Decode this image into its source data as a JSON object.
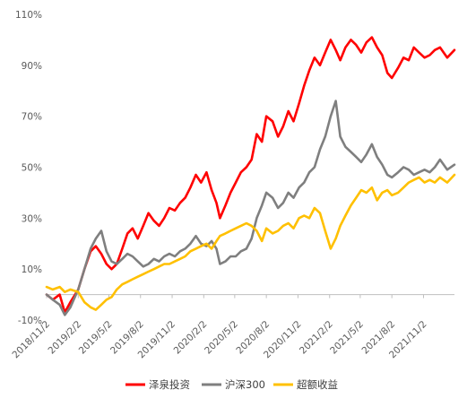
{
  "chart_data": {
    "type": "line",
    "title": "",
    "xlabel": "",
    "ylabel": "",
    "ylim": [
      -10,
      110
    ],
    "y_ticks": [
      "-10%",
      "10%",
      "30%",
      "50%",
      "70%",
      "90%",
      "110%"
    ],
    "y_tick_values": [
      -10,
      10,
      30,
      50,
      70,
      90,
      110
    ],
    "x_ticks": [
      "2018/11/2",
      "2019/2/2",
      "2019/5/2",
      "2019/8/2",
      "2019/11/2",
      "2020/2/2",
      "2020/5/2",
      "2020/8/2",
      "2020/11/2",
      "2021/2/2",
      "2021/5/2",
      "2021/8/2",
      "2021/11/2"
    ],
    "x_range": [
      "2018/11/2",
      "2022/1/31"
    ],
    "legend_position": "bottom",
    "gridlines": false,
    "series": [
      {
        "name": "泽泉投资",
        "color": "#ff0000",
        "points": [
          [
            "2018/11/2",
            0
          ],
          [
            "2018/11/20",
            -2
          ],
          [
            "2018/12/10",
            0
          ],
          [
            "2018/12/25",
            -7
          ],
          [
            "2019/1/10",
            -3
          ],
          [
            "2019/2/2",
            2
          ],
          [
            "2019/2/20",
            10
          ],
          [
            "2019/3/10",
            17
          ],
          [
            "2019/3/25",
            19
          ],
          [
            "2019/4/10",
            16
          ],
          [
            "2019/4/25",
            12
          ],
          [
            "2019/5/10",
            10
          ],
          [
            "2019/5/25",
            12
          ],
          [
            "2019/6/10",
            18
          ],
          [
            "2019/6/25",
            24
          ],
          [
            "2019/7/10",
            26
          ],
          [
            "2019/7/25",
            22
          ],
          [
            "2019/8/10",
            27
          ],
          [
            "2019/8/25",
            32
          ],
          [
            "2019/9/10",
            29
          ],
          [
            "2019/9/25",
            27
          ],
          [
            "2019/10/10",
            30
          ],
          [
            "2019/10/25",
            34
          ],
          [
            "2019/11/10",
            33
          ],
          [
            "2019/11/25",
            36
          ],
          [
            "2019/12/10",
            38
          ],
          [
            "2019/12/25",
            42
          ],
          [
            "2020/1/10",
            47
          ],
          [
            "2020/1/25",
            44
          ],
          [
            "2020/2/10",
            48
          ],
          [
            "2020/2/25",
            41
          ],
          [
            "2020/3/10",
            36
          ],
          [
            "2020/3/20",
            30
          ],
          [
            "2020/4/5",
            35
          ],
          [
            "2020/4/20",
            40
          ],
          [
            "2020/5/5",
            44
          ],
          [
            "2020/5/20",
            48
          ],
          [
            "2020/6/5",
            50
          ],
          [
            "2020/6/20",
            53
          ],
          [
            "2020/7/5",
            63
          ],
          [
            "2020/7/20",
            60
          ],
          [
            "2020/8/2",
            70
          ],
          [
            "2020/8/20",
            68
          ],
          [
            "2020/9/5",
            62
          ],
          [
            "2020/9/20",
            66
          ],
          [
            "2020/10/5",
            72
          ],
          [
            "2020/10/20",
            68
          ],
          [
            "2020/11/5",
            75
          ],
          [
            "2020/11/20",
            82
          ],
          [
            "2020/12/5",
            88
          ],
          [
            "2020/12/20",
            93
          ],
          [
            "2021/1/5",
            90
          ],
          [
            "2021/1/20",
            95
          ],
          [
            "2021/2/5",
            100
          ],
          [
            "2021/2/20",
            96
          ],
          [
            "2021/3/5",
            92
          ],
          [
            "2021/3/20",
            97
          ],
          [
            "2021/4/5",
            100
          ],
          [
            "2021/4/20",
            98
          ],
          [
            "2021/5/5",
            95
          ],
          [
            "2021/5/20",
            99
          ],
          [
            "2021/6/5",
            101
          ],
          [
            "2021/6/20",
            97
          ],
          [
            "2021/7/5",
            94
          ],
          [
            "2021/7/20",
            87
          ],
          [
            "2021/8/2",
            85
          ],
          [
            "2021/8/20",
            89
          ],
          [
            "2021/9/5",
            93
          ],
          [
            "2021/9/20",
            92
          ],
          [
            "2021/10/5",
            97
          ],
          [
            "2021/10/20",
            95
          ],
          [
            "2021/11/5",
            93
          ],
          [
            "2021/11/20",
            94
          ],
          [
            "2021/12/5",
            96
          ],
          [
            "2021/12/20",
            97
          ],
          [
            "2022/1/10",
            93
          ],
          [
            "2022/1/31",
            96
          ]
        ]
      },
      {
        "name": "沪深300",
        "color": "#7f7f7f",
        "points": [
          [
            "2018/11/2",
            0
          ],
          [
            "2018/11/20",
            -2
          ],
          [
            "2018/12/10",
            -4
          ],
          [
            "2018/12/25",
            -8
          ],
          [
            "2019/1/10",
            -5
          ],
          [
            "2019/2/2",
            2
          ],
          [
            "2019/2/20",
            10
          ],
          [
            "2019/3/10",
            18
          ],
          [
            "2019/3/25",
            22
          ],
          [
            "2019/4/10",
            25
          ],
          [
            "2019/4/25",
            17
          ],
          [
            "2019/5/10",
            13
          ],
          [
            "2019/5/25",
            12
          ],
          [
            "2019/6/10",
            14
          ],
          [
            "2019/6/25",
            16
          ],
          [
            "2019/7/10",
            15
          ],
          [
            "2019/7/25",
            13
          ],
          [
            "2019/8/10",
            11
          ],
          [
            "2019/8/25",
            12
          ],
          [
            "2019/9/10",
            14
          ],
          [
            "2019/9/25",
            13
          ],
          [
            "2019/10/10",
            15
          ],
          [
            "2019/10/25",
            16
          ],
          [
            "2019/11/10",
            15
          ],
          [
            "2019/11/25",
            17
          ],
          [
            "2019/12/10",
            18
          ],
          [
            "2019/12/25",
            20
          ],
          [
            "2020/1/10",
            23
          ],
          [
            "2020/1/25",
            20
          ],
          [
            "2020/2/10",
            19
          ],
          [
            "2020/2/25",
            21
          ],
          [
            "2020/3/10",
            18
          ],
          [
            "2020/3/20",
            12
          ],
          [
            "2020/4/5",
            13
          ],
          [
            "2020/4/20",
            15
          ],
          [
            "2020/5/5",
            15
          ],
          [
            "2020/5/20",
            17
          ],
          [
            "2020/6/5",
            18
          ],
          [
            "2020/6/20",
            22
          ],
          [
            "2020/7/5",
            30
          ],
          [
            "2020/7/20",
            35
          ],
          [
            "2020/8/2",
            40
          ],
          [
            "2020/8/20",
            38
          ],
          [
            "2020/9/5",
            34
          ],
          [
            "2020/9/20",
            36
          ],
          [
            "2020/10/5",
            40
          ],
          [
            "2020/10/20",
            38
          ],
          [
            "2020/11/5",
            42
          ],
          [
            "2020/11/20",
            44
          ],
          [
            "2020/12/5",
            48
          ],
          [
            "2020/12/20",
            50
          ],
          [
            "2021/1/5",
            57
          ],
          [
            "2021/1/20",
            62
          ],
          [
            "2021/2/5",
            70
          ],
          [
            "2021/2/20",
            76
          ],
          [
            "2021/3/5",
            62
          ],
          [
            "2021/3/20",
            58
          ],
          [
            "2021/4/5",
            56
          ],
          [
            "2021/4/20",
            54
          ],
          [
            "2021/5/5",
            52
          ],
          [
            "2021/5/20",
            55
          ],
          [
            "2021/6/5",
            59
          ],
          [
            "2021/6/20",
            54
          ],
          [
            "2021/7/5",
            51
          ],
          [
            "2021/7/20",
            47
          ],
          [
            "2021/8/2",
            46
          ],
          [
            "2021/8/20",
            48
          ],
          [
            "2021/9/5",
            50
          ],
          [
            "2021/9/20",
            49
          ],
          [
            "2021/10/5",
            47
          ],
          [
            "2021/10/20",
            48
          ],
          [
            "2021/11/5",
            49
          ],
          [
            "2021/11/20",
            48
          ],
          [
            "2021/12/5",
            50
          ],
          [
            "2021/12/20",
            53
          ],
          [
            "2022/1/10",
            49
          ],
          [
            "2022/1/31",
            51
          ]
        ]
      },
      {
        "name": "超额收益",
        "color": "#ffc000",
        "points": [
          [
            "2018/11/2",
            3
          ],
          [
            "2018/11/20",
            2
          ],
          [
            "2018/12/10",
            3
          ],
          [
            "2018/12/25",
            1
          ],
          [
            "2019/1/10",
            2
          ],
          [
            "2019/2/2",
            1
          ],
          [
            "2019/2/20",
            -3
          ],
          [
            "2019/3/10",
            -5
          ],
          [
            "2019/3/25",
            -6
          ],
          [
            "2019/4/10",
            -4
          ],
          [
            "2019/4/25",
            -2
          ],
          [
            "2019/5/10",
            -1
          ],
          [
            "2019/5/25",
            2
          ],
          [
            "2019/6/10",
            4
          ],
          [
            "2019/6/25",
            5
          ],
          [
            "2019/7/10",
            6
          ],
          [
            "2019/7/25",
            7
          ],
          [
            "2019/8/10",
            8
          ],
          [
            "2019/8/25",
            9
          ],
          [
            "2019/9/10",
            10
          ],
          [
            "2019/9/25",
            11
          ],
          [
            "2019/10/10",
            12
          ],
          [
            "2019/10/25",
            12
          ],
          [
            "2019/11/10",
            13
          ],
          [
            "2019/11/25",
            14
          ],
          [
            "2019/12/10",
            15
          ],
          [
            "2019/12/25",
            17
          ],
          [
            "2020/1/10",
            18
          ],
          [
            "2020/1/25",
            19
          ],
          [
            "2020/2/10",
            20
          ],
          [
            "2020/2/25",
            18
          ],
          [
            "2020/3/10",
            21
          ],
          [
            "2020/3/20",
            23
          ],
          [
            "2020/4/5",
            24
          ],
          [
            "2020/4/20",
            25
          ],
          [
            "2020/5/5",
            26
          ],
          [
            "2020/5/20",
            27
          ],
          [
            "2020/6/5",
            28
          ],
          [
            "2020/6/20",
            27
          ],
          [
            "2020/7/5",
            25
          ],
          [
            "2020/7/20",
            21
          ],
          [
            "2020/8/2",
            26
          ],
          [
            "2020/8/20",
            24
          ],
          [
            "2020/9/5",
            25
          ],
          [
            "2020/9/20",
            27
          ],
          [
            "2020/10/5",
            28
          ],
          [
            "2020/10/20",
            26
          ],
          [
            "2020/11/5",
            30
          ],
          [
            "2020/11/20",
            31
          ],
          [
            "2020/12/5",
            30
          ],
          [
            "2020/12/20",
            34
          ],
          [
            "2021/1/5",
            32
          ],
          [
            "2021/1/20",
            25
          ],
          [
            "2021/2/5",
            18
          ],
          [
            "2021/2/20",
            22
          ],
          [
            "2021/3/5",
            27
          ],
          [
            "2021/3/20",
            31
          ],
          [
            "2021/4/5",
            35
          ],
          [
            "2021/4/20",
            38
          ],
          [
            "2021/5/5",
            41
          ],
          [
            "2021/5/20",
            40
          ],
          [
            "2021/6/5",
            42
          ],
          [
            "2021/6/20",
            37
          ],
          [
            "2021/7/5",
            40
          ],
          [
            "2021/7/20",
            41
          ],
          [
            "2021/8/2",
            39
          ],
          [
            "2021/8/20",
            40
          ],
          [
            "2021/9/5",
            42
          ],
          [
            "2021/9/20",
            44
          ],
          [
            "2021/10/5",
            45
          ],
          [
            "2021/10/20",
            46
          ],
          [
            "2021/11/5",
            44
          ],
          [
            "2021/11/20",
            45
          ],
          [
            "2021/12/5",
            44
          ],
          [
            "2021/12/20",
            46
          ],
          [
            "2022/1/10",
            44
          ],
          [
            "2022/1/31",
            47
          ]
        ]
      }
    ]
  }
}
